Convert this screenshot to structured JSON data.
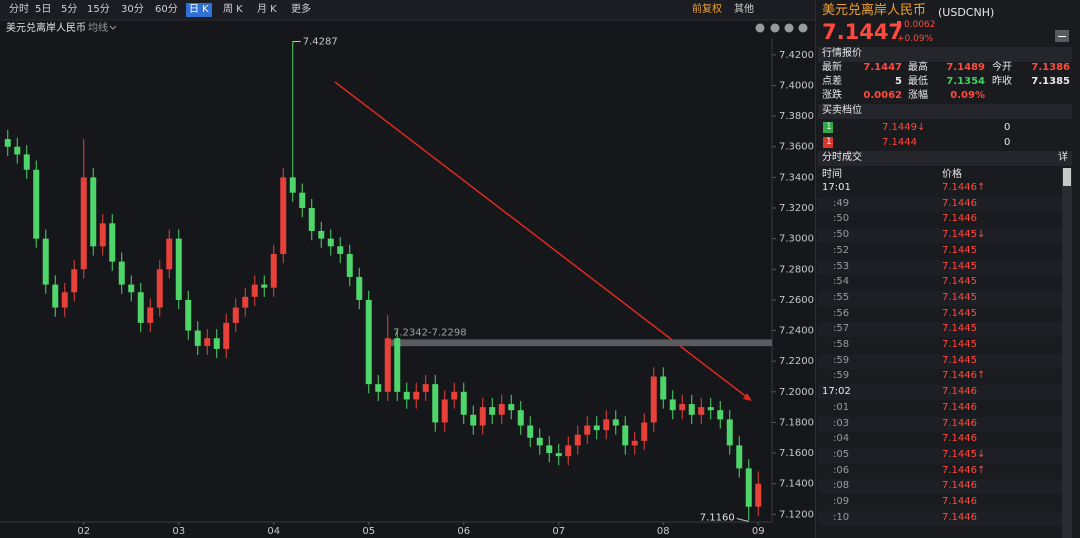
{
  "toolbar": {
    "tabs": [
      "分时",
      "5日",
      "5分",
      "15分",
      "30分",
      "60分",
      "日 K",
      "周 K",
      "月 K",
      "更多"
    ],
    "active": 6,
    "adjust": "前复权",
    "other": "其他"
  },
  "chart_header": {
    "name": "美元兑离岸人民币",
    "ma": "均线"
  },
  "chart_data": {
    "type": "candlestick",
    "categories": [
      null,
      null,
      null,
      null,
      null,
      null,
      null,
      null,
      "02",
      null,
      null,
      null,
      null,
      null,
      null,
      null,
      null,
      null,
      "03",
      null,
      null,
      null,
      null,
      null,
      null,
      null,
      null,
      null,
      "04",
      null,
      null,
      null,
      null,
      null,
      null,
      null,
      null,
      null,
      "05",
      null,
      null,
      null,
      null,
      null,
      null,
      null,
      null,
      null,
      "06",
      null,
      null,
      null,
      null,
      null,
      null,
      null,
      null,
      null,
      "07",
      null,
      null,
      null,
      null,
      null,
      null,
      null,
      null,
      null,
      null,
      "08",
      null,
      null,
      null,
      null,
      null,
      null,
      null,
      null,
      null,
      "09"
    ],
    "open": [
      7.365,
      7.36,
      7.355,
      7.345,
      7.3,
      7.27,
      7.255,
      7.265,
      7.28,
      7.34,
      7.295,
      7.31,
      7.285,
      7.27,
      7.265,
      7.245,
      7.255,
      7.28,
      7.3,
      7.26,
      7.24,
      7.23,
      7.235,
      7.228,
      7.245,
      7.255,
      7.262,
      7.27,
      7.268,
      7.29,
      7.34,
      7.33,
      7.32,
      7.305,
      7.3,
      7.295,
      7.29,
      7.275,
      7.26,
      7.205,
      7.2,
      7.235,
      7.2,
      7.195,
      7.2,
      7.205,
      7.18,
      7.195,
      7.2,
      7.185,
      7.178,
      7.19,
      7.185,
      7.192,
      7.188,
      7.178,
      7.17,
      7.165,
      7.16,
      7.158,
      7.165,
      7.172,
      7.178,
      7.175,
      7.182,
      7.178,
      7.165,
      7.168,
      7.18,
      7.21,
      7.195,
      7.188,
      7.192,
      7.185,
      7.19,
      7.188,
      7.182,
      7.165,
      7.15,
      7.125
    ],
    "high": [
      7.371,
      7.366,
      7.361,
      7.351,
      7.306,
      7.276,
      7.271,
      7.286,
      7.365,
      7.346,
      7.316,
      7.316,
      7.291,
      7.276,
      7.271,
      7.261,
      7.286,
      7.306,
      7.306,
      7.266,
      7.246,
      7.241,
      7.241,
      7.251,
      7.261,
      7.268,
      7.276,
      7.276,
      7.296,
      7.346,
      7.4287,
      7.336,
      7.326,
      7.311,
      7.306,
      7.301,
      7.296,
      7.281,
      7.266,
      7.211,
      7.25,
      7.241,
      7.206,
      7.206,
      7.211,
      7.211,
      7.201,
      7.206,
      7.206,
      7.191,
      7.196,
      7.196,
      7.198,
      7.198,
      7.194,
      7.184,
      7.176,
      7.171,
      7.166,
      7.171,
      7.178,
      7.184,
      7.184,
      7.188,
      7.188,
      7.184,
      7.174,
      7.186,
      7.216,
      7.216,
      7.201,
      7.198,
      7.198,
      7.196,
      7.196,
      7.194,
      7.188,
      7.171,
      7.156,
      7.148
    ],
    "low": [
      7.354,
      7.349,
      7.339,
      7.294,
      7.264,
      7.249,
      7.249,
      7.259,
      7.274,
      7.289,
      7.289,
      7.279,
      7.264,
      7.259,
      7.239,
      7.239,
      7.249,
      7.274,
      7.254,
      7.234,
      7.224,
      7.224,
      7.222,
      7.222,
      7.239,
      7.249,
      7.256,
      7.262,
      7.262,
      7.284,
      7.324,
      7.314,
      7.299,
      7.294,
      7.289,
      7.284,
      7.269,
      7.254,
      7.199,
      7.194,
      7.194,
      7.194,
      7.189,
      7.189,
      7.194,
      7.174,
      7.174,
      7.189,
      7.179,
      7.172,
      7.172,
      7.179,
      7.179,
      7.182,
      7.172,
      7.164,
      7.159,
      7.154,
      7.152,
      7.152,
      7.159,
      7.166,
      7.169,
      7.169,
      7.172,
      7.159,
      7.159,
      7.162,
      7.174,
      7.189,
      7.182,
      7.182,
      7.179,
      7.179,
      7.182,
      7.176,
      7.159,
      7.144,
      7.116,
      7.119
    ],
    "close": [
      7.36,
      7.355,
      7.345,
      7.3,
      7.27,
      7.255,
      7.265,
      7.28,
      7.34,
      7.295,
      7.31,
      7.285,
      7.27,
      7.265,
      7.245,
      7.255,
      7.28,
      7.3,
      7.26,
      7.24,
      7.23,
      7.235,
      7.228,
      7.245,
      7.255,
      7.262,
      7.27,
      7.268,
      7.29,
      7.34,
      7.33,
      7.32,
      7.305,
      7.3,
      7.295,
      7.29,
      7.275,
      7.26,
      7.205,
      7.2,
      7.235,
      7.2,
      7.195,
      7.2,
      7.205,
      7.18,
      7.195,
      7.2,
      7.185,
      7.178,
      7.19,
      7.185,
      7.192,
      7.188,
      7.178,
      7.17,
      7.165,
      7.16,
      7.158,
      7.165,
      7.172,
      7.178,
      7.175,
      7.182,
      7.178,
      7.165,
      7.168,
      7.18,
      7.21,
      7.195,
      7.188,
      7.192,
      7.185,
      7.19,
      7.188,
      7.182,
      7.165,
      7.15,
      7.125,
      7.14
    ],
    "up_color": "#e8413a",
    "down_color": "#4fd66a",
    "ylim": [
      7.115,
      7.431
    ],
    "yticks": [
      {
        "value": 7.12,
        "label": "7.1200"
      },
      {
        "value": 7.14,
        "label": "7.1400"
      },
      {
        "value": 7.16,
        "label": "7.1600"
      },
      {
        "value": 7.18,
        "label": "7.1800"
      },
      {
        "value": 7.2,
        "label": "7.2000"
      },
      {
        "value": 7.22,
        "label": "7.2200"
      },
      {
        "value": 7.24,
        "label": "7.2400"
      },
      {
        "value": 7.26,
        "label": "7.2600"
      },
      {
        "value": 7.28,
        "label": "7.2800"
      },
      {
        "value": 7.3,
        "label": "7.3000"
      },
      {
        "value": 7.32,
        "label": "7.3200"
      },
      {
        "value": 7.34,
        "label": "7.3400"
      },
      {
        "value": 7.36,
        "label": "7.3600"
      },
      {
        "value": 7.38,
        "label": "7.3800"
      },
      {
        "value": 7.4,
        "label": "7.4000"
      },
      {
        "value": 7.42,
        "label": "7.4200"
      }
    ],
    "grid": false,
    "max_label": {
      "value": 7.4287,
      "label": "7.4287"
    },
    "min_label": {
      "value": 7.116,
      "label": "7.1160"
    },
    "band": {
      "values": [
        7.2342,
        7.2298
      ],
      "label": "7.2342-7.2298"
    }
  },
  "panel": {
    "title": "美元兑离岸人民币",
    "code": "(USDCNH)",
    "price": "7.1447",
    "change": "0.0062",
    "change_pct": "+0.09%",
    "quote_header": "行情报价",
    "quote_rows": [
      [
        "最新",
        "7.1447",
        "最高",
        "7.1489",
        "今开",
        "7.1386"
      ],
      [
        "点差",
        "5",
        "最低",
        "7.1354",
        "昨收",
        "7.1385"
      ],
      [
        "涨跌",
        "0.0062",
        "涨幅",
        "0.09%"
      ]
    ],
    "book_header": "买卖档位",
    "book_rows": [
      [
        "1",
        "7.1449↓",
        "0"
      ],
      [
        "1",
        "7.1444",
        "0"
      ]
    ],
    "trades_header": "分时成交",
    "detail": "详",
    "col_time": "时间",
    "col_price": "价格",
    "trades": [
      [
        "17:01",
        "7.1446↑"
      ],
      [
        ":49",
        "7.1446"
      ],
      [
        ":50",
        "7.1446"
      ],
      [
        ":50",
        "7.1445↓"
      ],
      [
        ":52",
        "7.1445"
      ],
      [
        ":53",
        "7.1445"
      ],
      [
        ":54",
        "7.1445"
      ],
      [
        ":55",
        "7.1445"
      ],
      [
        ":56",
        "7.1445"
      ],
      [
        ":57",
        "7.1445"
      ],
      [
        ":58",
        "7.1445"
      ],
      [
        ":59",
        "7.1445"
      ],
      [
        ":59",
        "7.1446↑"
      ],
      [
        "17:02",
        "7.1446"
      ],
      [
        ":01",
        "7.1446"
      ],
      [
        ":03",
        "7.1446"
      ],
      [
        ":04",
        "7.1446"
      ],
      [
        ":05",
        "7.1445↓"
      ],
      [
        ":06",
        "7.1446↑"
      ],
      [
        ":08",
        "7.1446"
      ],
      [
        ":09",
        "7.1446"
      ],
      [
        ":10",
        "7.1446"
      ]
    ]
  }
}
